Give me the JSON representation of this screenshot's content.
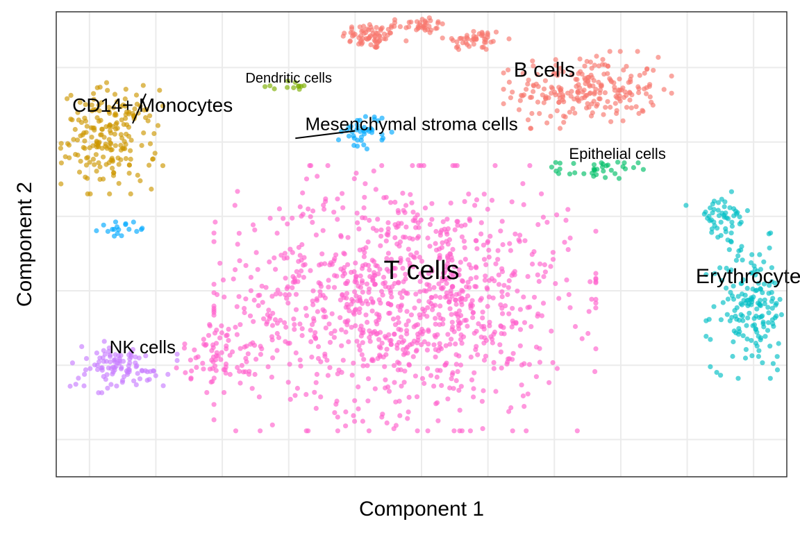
{
  "chart_data": {
    "type": "scatter",
    "xlabel": "Component 1",
    "ylabel": "Component 2",
    "xlim": [
      -11,
      11
    ],
    "ylim": [
      -7,
      5.5
    ],
    "x_ticks": [
      -10,
      -8,
      -6,
      -4,
      -2,
      0,
      2,
      4,
      6,
      8,
      10
    ],
    "y_ticks": [
      -6,
      -4,
      -2,
      0,
      2,
      4,
      6
    ],
    "grid": true,
    "legend": "none",
    "clusters": [
      {
        "name": "B cells",
        "color": "#F8766D",
        "label_pos": [
          3.7,
          3.9
        ],
        "label_size": 30,
        "blobs": [
          {
            "cx": -1.5,
            "cy": 4.85,
            "sx": 0.45,
            "sy": 0.18,
            "n": 70
          },
          {
            "cx": 0.0,
            "cy": 5.15,
            "sx": 0.35,
            "sy": 0.12,
            "n": 35
          },
          {
            "cx": 1.6,
            "cy": 4.75,
            "sx": 0.45,
            "sy": 0.15,
            "n": 45
          },
          {
            "cx": 5.0,
            "cy": 3.4,
            "sx": 1.1,
            "sy": 0.45,
            "n": 220
          }
        ]
      },
      {
        "name": "CD14+ Monocytes",
        "color": "#CD9600",
        "label_pos": [
          -8.1,
          2.95
        ],
        "label_size": 28,
        "blobs": [
          {
            "cx": -9.4,
            "cy": 2.1,
            "sx": 0.7,
            "sy": 0.65,
            "n": 200
          }
        ]
      },
      {
        "name": "Dendritic cells",
        "color": "#7CAE00",
        "label_pos": [
          -4.0,
          3.7
        ],
        "label_size": 20,
        "blobs": [
          {
            "cx": -4.1,
            "cy": 3.5,
            "sx": 0.4,
            "sy": 0.07,
            "n": 12
          }
        ]
      },
      {
        "name": "Mesenchymal stroma cells",
        "color": "#00A9FF",
        "label_pos": [
          -0.3,
          2.45
        ],
        "label_size": 26,
        "blobs": [
          {
            "cx": -1.7,
            "cy": 2.3,
            "sx": 0.35,
            "sy": 0.25,
            "n": 40
          },
          {
            "cx": -9.1,
            "cy": -0.3,
            "sx": 0.3,
            "sy": 0.1,
            "n": 18
          }
        ]
      },
      {
        "name": "Epithelial cells",
        "color": "#00BE67",
        "label_pos": [
          5.9,
          1.65
        ],
        "label_size": 22,
        "blobs": [
          {
            "cx": 5.3,
            "cy": 1.25,
            "sx": 0.6,
            "sy": 0.12,
            "n": 35
          }
        ]
      },
      {
        "name": "Erythrocytes",
        "color": "#00BFC4",
        "label_pos": [
          10.0,
          -1.65
        ],
        "label_size": 30,
        "blobs": [
          {
            "cx": 9.0,
            "cy": -0.1,
            "sx": 0.45,
            "sy": 0.35,
            "n": 50
          },
          {
            "cx": 9.95,
            "cy": -2.4,
            "sx": 0.6,
            "sy": 0.85,
            "n": 170
          }
        ]
      },
      {
        "name": "T cells",
        "color": "#FF61CC",
        "label_pos": [
          0.0,
          -1.5
        ],
        "label_size": 38,
        "blobs": [
          {
            "cx": -0.5,
            "cy": -2.2,
            "sx": 2.5,
            "sy": 1.55,
            "n": 1050
          },
          {
            "cx": -6.0,
            "cy": -3.7,
            "sx": 0.6,
            "sy": 0.45,
            "n": 80
          }
        ]
      },
      {
        "name": "NK cells",
        "color": "#C77CFF",
        "label_pos": [
          -8.4,
          -3.55
        ],
        "label_size": 26,
        "blobs": [
          {
            "cx": -9.2,
            "cy": -4.05,
            "sx": 0.8,
            "sy": 0.3,
            "n": 100
          }
        ]
      }
    ],
    "leader_lines": [
      {
        "from": [
          -8.7,
          2.5
        ],
        "to": [
          -8.3,
          3.3
        ]
      },
      {
        "from": [
          -3.8,
          2.1
        ],
        "to": [
          -2.0,
          2.3
        ]
      }
    ]
  }
}
